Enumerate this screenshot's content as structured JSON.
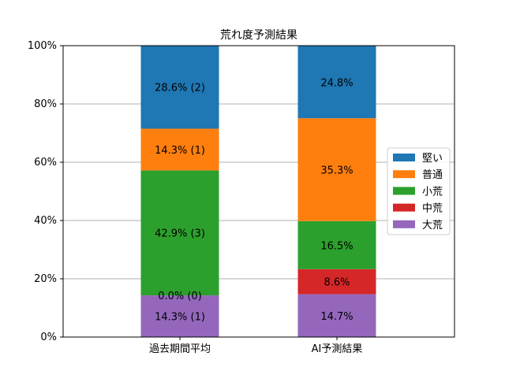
{
  "chart_data": {
    "type": "bar",
    "stacked": true,
    "title": "荒れ度予測結果",
    "xlabel": "",
    "ylabel": "",
    "ylim": [
      0,
      100
    ],
    "yticks": [
      "0%",
      "20%",
      "40%",
      "60%",
      "80%",
      "100%"
    ],
    "grid": "horizontal",
    "legend_position": "right",
    "categories": [
      "過去期間平均",
      "AI予測結果"
    ],
    "series": [
      {
        "name": "大荒",
        "color": "#9467bd",
        "values": [
          14.3,
          14.7
        ],
        "labels": [
          "14.3% (1)",
          "14.7%"
        ]
      },
      {
        "name": "中荒",
        "color": "#d62728",
        "values": [
          0.0,
          8.6
        ],
        "labels": [
          "0.0% (0)",
          "8.6%"
        ]
      },
      {
        "name": "小荒",
        "color": "#2ca02c",
        "values": [
          42.9,
          16.5
        ],
        "labels": [
          "42.9% (3)",
          "16.5%"
        ]
      },
      {
        "name": "普通",
        "color": "#ff7f0e",
        "values": [
          14.3,
          35.3
        ],
        "labels": [
          "14.3% (1)",
          "35.3%"
        ]
      },
      {
        "name": "堅い",
        "color": "#1f77b4",
        "values": [
          28.6,
          24.8
        ],
        "labels": [
          "28.6% (2)",
          "24.8%"
        ]
      }
    ],
    "legend_order": [
      "堅い",
      "普通",
      "小荒",
      "中荒",
      "大荒"
    ]
  }
}
